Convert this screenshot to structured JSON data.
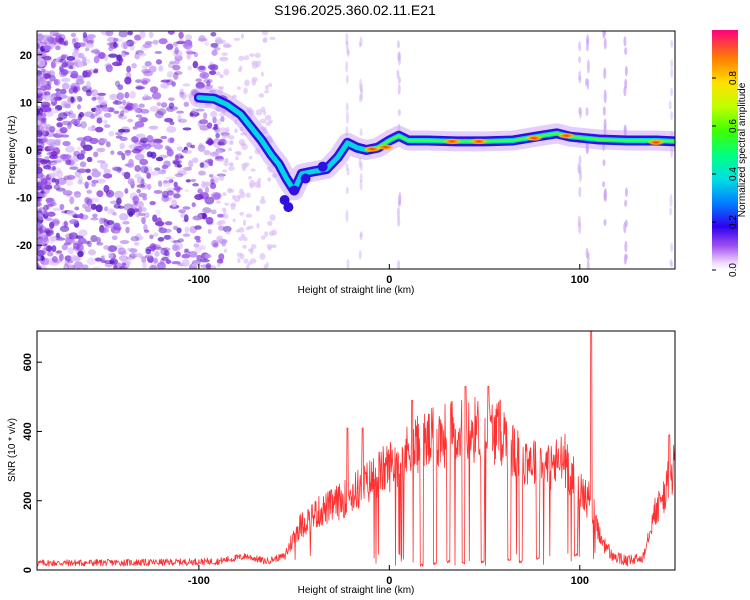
{
  "title": "S196.2025.360.02.11.E21",
  "chart_data": [
    {
      "type": "heatmap",
      "panel": "spectrogram",
      "xlabel": "Height of straight line (km)",
      "ylabel": "Frequency (Hz)",
      "xlim": [
        -185,
        150
      ],
      "ylim": [
        -25,
        25
      ],
      "xticks": [
        -100,
        0,
        100
      ],
      "yticks": [
        -20,
        -10,
        0,
        10,
        20
      ],
      "colorbar": {
        "label": "Normalized spectral amplitude",
        "range": [
          0,
          1
        ],
        "ticks": [
          0.0,
          0.2,
          0.4,
          0.6,
          0.8
        ]
      },
      "ridge": [
        {
          "x": -100,
          "y": 11
        },
        {
          "x": -92,
          "y": 10.8
        },
        {
          "x": -85,
          "y": 9.5
        },
        {
          "x": -78,
          "y": 7.5
        },
        {
          "x": -72,
          "y": 4.5
        },
        {
          "x": -67,
          "y": 2
        },
        {
          "x": -62,
          "y": -1
        },
        {
          "x": -58,
          "y": -3
        },
        {
          "x": -54,
          "y": -6
        },
        {
          "x": -50,
          "y": -8.5
        },
        {
          "x": -46,
          "y": -5
        },
        {
          "x": -40,
          "y": -4.5
        },
        {
          "x": -33,
          "y": -4
        },
        {
          "x": -27,
          "y": -1.5
        },
        {
          "x": -22,
          "y": 1.5
        },
        {
          "x": -17,
          "y": 0.5
        },
        {
          "x": -12,
          "y": 0
        },
        {
          "x": -6,
          "y": 0.5
        },
        {
          "x": 0,
          "y": 2
        },
        {
          "x": 5,
          "y": 3
        },
        {
          "x": 10,
          "y": 2
        },
        {
          "x": 20,
          "y": 2
        },
        {
          "x": 35,
          "y": 1.8
        },
        {
          "x": 50,
          "y": 1.8
        },
        {
          "x": 65,
          "y": 2
        },
        {
          "x": 80,
          "y": 3
        },
        {
          "x": 88,
          "y": 3.5
        },
        {
          "x": 95,
          "y": 2.8
        },
        {
          "x": 110,
          "y": 2.2
        },
        {
          "x": 125,
          "y": 2
        },
        {
          "x": 140,
          "y": 2
        },
        {
          "x": 150,
          "y": 1.8
        }
      ],
      "hotspots": [
        {
          "x": -9,
          "y": 0.2
        },
        {
          "x": -2,
          "y": 0.6
        },
        {
          "x": 33,
          "y": 1.8
        },
        {
          "x": 47,
          "y": 1.8
        },
        {
          "x": 76,
          "y": 2.5
        },
        {
          "x": 93,
          "y": 3
        },
        {
          "x": 140,
          "y": 1.6
        }
      ]
    },
    {
      "type": "line",
      "panel": "snr",
      "xlabel": "Height of straight line (km)",
      "ylabel": "SNR (10 * v/v)",
      "xlim": [
        -185,
        150
      ],
      "ylim": [
        0,
        690
      ],
      "xticks": [
        -100,
        0,
        100
      ],
      "yticks": [
        0,
        200,
        400,
        600
      ],
      "color": "#ff3030",
      "envelope": [
        {
          "x": -185,
          "y": 20
        },
        {
          "x": -120,
          "y": 22
        },
        {
          "x": -90,
          "y": 25
        },
        {
          "x": -75,
          "y": 40
        },
        {
          "x": -65,
          "y": 25
        },
        {
          "x": -55,
          "y": 40
        },
        {
          "x": -48,
          "y": 120
        },
        {
          "x": -40,
          "y": 160
        },
        {
          "x": -32,
          "y": 180
        },
        {
          "x": -22,
          "y": 210
        },
        {
          "x": -12,
          "y": 250
        },
        {
          "x": -5,
          "y": 280
        },
        {
          "x": 5,
          "y": 320
        },
        {
          "x": 15,
          "y": 360
        },
        {
          "x": 25,
          "y": 380
        },
        {
          "x": 35,
          "y": 400
        },
        {
          "x": 45,
          "y": 405
        },
        {
          "x": 55,
          "y": 400
        },
        {
          "x": 60,
          "y": 395
        },
        {
          "x": 65,
          "y": 340
        },
        {
          "x": 75,
          "y": 320
        },
        {
          "x": 85,
          "y": 300
        },
        {
          "x": 92,
          "y": 320
        },
        {
          "x": 97,
          "y": 260
        },
        {
          "x": 103,
          "y": 210
        },
        {
          "x": 106,
          "y": 200
        },
        {
          "x": 110,
          "y": 100
        },
        {
          "x": 117,
          "y": 40
        },
        {
          "x": 125,
          "y": 25
        },
        {
          "x": 133,
          "y": 35
        },
        {
          "x": 138,
          "y": 150
        },
        {
          "x": 143,
          "y": 200
        },
        {
          "x": 147,
          "y": 260
        },
        {
          "x": 150,
          "y": 310
        }
      ],
      "dropouts": [
        {
          "x": 17,
          "y": 10
        },
        {
          "x": 24,
          "y": 15
        },
        {
          "x": 31,
          "y": 20
        },
        {
          "x": 39,
          "y": 15
        },
        {
          "x": 49,
          "y": 20
        },
        {
          "x": 63,
          "y": 25
        },
        {
          "x": 69,
          "y": 20
        },
        {
          "x": 78,
          "y": 30
        },
        {
          "x": 98,
          "y": 40
        }
      ],
      "peaks": [
        {
          "x": -22,
          "y": 410
        },
        {
          "x": -14,
          "y": 410
        },
        {
          "x": 12,
          "y": 490
        },
        {
          "x": 40,
          "y": 530
        },
        {
          "x": 52,
          "y": 530
        },
        {
          "x": 106,
          "y": 690
        },
        {
          "x": 147,
          "y": 390
        }
      ]
    }
  ]
}
